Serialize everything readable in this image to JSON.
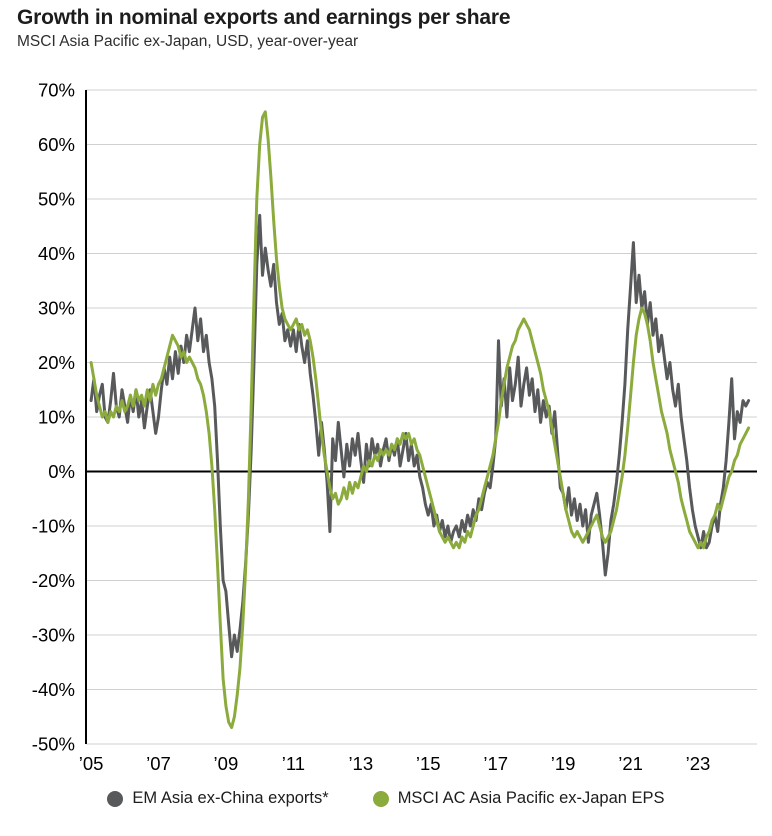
{
  "chart_data": {
    "type": "line",
    "title": "Growth in nominal exports and earnings per share",
    "subtitle": "MSCI Asia Pacific ex-Japan, USD, year-over-year",
    "frequency": "monthly",
    "x_start": 2005.0,
    "x_step": 0.0833333,
    "xlim": [
      2004.85,
      2024.75
    ],
    "ylim": [
      -50,
      70
    ],
    "grid": "horizontal",
    "grid_color": "#cfd0d2",
    "zero_line": true,
    "zero_line_color": "#000000",
    "axis_color": "#000000",
    "legend_position": "bottom",
    "y_ticks": [
      {
        "value": 70,
        "label": "70%"
      },
      {
        "value": 60,
        "label": "60%"
      },
      {
        "value": 50,
        "label": "50%"
      },
      {
        "value": 40,
        "label": "40%"
      },
      {
        "value": 30,
        "label": "30%"
      },
      {
        "value": 20,
        "label": "20%"
      },
      {
        "value": 10,
        "label": "10%"
      },
      {
        "value": 0,
        "label": "0%"
      },
      {
        "value": -10,
        "label": "-10%"
      },
      {
        "value": -20,
        "label": "-20%"
      },
      {
        "value": -30,
        "label": "-30%"
      },
      {
        "value": -40,
        "label": "-40%"
      },
      {
        "value": -50,
        "label": "-50%"
      }
    ],
    "x_ticks": [
      {
        "value": 2005,
        "label": "’05"
      },
      {
        "value": 2007,
        "label": "’07"
      },
      {
        "value": 2009,
        "label": "’09"
      },
      {
        "value": 2011,
        "label": "’11"
      },
      {
        "value": 2013,
        "label": "’13"
      },
      {
        "value": 2015,
        "label": "’15"
      },
      {
        "value": 2017,
        "label": "’17"
      },
      {
        "value": 2019,
        "label": "’19"
      },
      {
        "value": 2021,
        "label": "’21"
      },
      {
        "value": 2023,
        "label": "’23"
      }
    ],
    "series": [
      {
        "name": "EM Asia ex-China exports*",
        "color": "#58595b",
        "values": [
          13,
          17,
          11,
          14,
          16,
          10,
          9,
          13,
          18,
          12,
          10,
          15,
          12,
          9,
          14,
          11,
          15,
          10,
          13,
          8,
          12,
          15,
          11,
          7,
          10,
          15,
          19,
          16,
          21,
          17,
          22,
          18,
          23,
          20,
          25,
          22,
          26,
          30,
          24,
          28,
          22,
          25,
          20,
          17,
          12,
          2,
          -10,
          -20,
          -22,
          -28,
          -34,
          -30,
          -33,
          -29,
          -24,
          -17,
          -8,
          4,
          20,
          38,
          47,
          36,
          41,
          37,
          34,
          38,
          31,
          27,
          29,
          24,
          26,
          23,
          26,
          22,
          27,
          23,
          20,
          24,
          18,
          14,
          9,
          3,
          9,
          4,
          -2,
          -11,
          6,
          2,
          9,
          4,
          -1,
          5,
          1,
          6,
          3,
          7,
          2,
          -2,
          5,
          1,
          6,
          3,
          5,
          1,
          4,
          6,
          2,
          5,
          3,
          6,
          1,
          4,
          7,
          2,
          5,
          1,
          3,
          -1,
          -3,
          -6,
          -8,
          -6,
          -10,
          -8,
          -11,
          -9,
          -12,
          -10,
          -13,
          -11,
          -10,
          -12,
          -9,
          -11,
          -8,
          -10,
          -7,
          -9,
          -5,
          -7,
          -4,
          -2,
          -3,
          1,
          6,
          24,
          12,
          17,
          10,
          19,
          13,
          16,
          21,
          12,
          16,
          19,
          14,
          17,
          11,
          15,
          9,
          13,
          10,
          12,
          7,
          11,
          4,
          -3,
          -4,
          -7,
          -3,
          -8,
          -5,
          -9,
          -6,
          -10,
          -7,
          -13,
          -8,
          -6,
          -4,
          -8,
          -13,
          -19,
          -15,
          -9,
          -6,
          -2,
          3,
          9,
          16,
          26,
          34,
          42,
          31,
          36,
          30,
          33,
          27,
          31,
          25,
          28,
          22,
          25,
          21,
          17,
          20,
          15,
          12,
          16,
          10,
          6,
          2,
          -3,
          -7,
          -10,
          -12,
          -14,
          -11,
          -14,
          -13,
          -10,
          -8,
          -11,
          -6,
          -3,
          2,
          9,
          17,
          6,
          11,
          9,
          13,
          12,
          13
        ]
      },
      {
        "name": "MSCI AC Asia Pacific ex-Japan EPS",
        "color": "#8cab3d",
        "values": [
          20,
          17,
          14,
          12,
          10,
          11,
          9,
          11,
          10,
          12,
          11,
          13,
          11,
          12,
          14,
          12,
          15,
          13,
          14,
          12,
          15,
          13,
          16,
          14,
          16,
          17,
          19,
          21,
          23,
          25,
          24,
          23,
          21,
          22,
          20,
          21,
          20,
          19,
          17,
          16,
          14,
          11,
          7,
          1,
          -7,
          -17,
          -28,
          -38,
          -43,
          -46,
          -47,
          -45,
          -41,
          -36,
          -28,
          -18,
          -5,
          12,
          32,
          50,
          60,
          65,
          66,
          61,
          54,
          46,
          39,
          34,
          30,
          28,
          27,
          26,
          27,
          28,
          26,
          27,
          25,
          26,
          24,
          21,
          17,
          12,
          7,
          3,
          0,
          -3,
          -5,
          -4,
          -6,
          -5,
          -3,
          -5,
          -2,
          -4,
          -2,
          -3,
          -1,
          1,
          0,
          2,
          1,
          3,
          2,
          4,
          3,
          4,
          3,
          5,
          4,
          6,
          5,
          7,
          6,
          7,
          5,
          6,
          4,
          3,
          1,
          -1,
          -3,
          -5,
          -7,
          -9,
          -11,
          -12,
          -13,
          -12,
          -13,
          -14,
          -13,
          -14,
          -12,
          -13,
          -11,
          -12,
          -10,
          -8,
          -7,
          -5,
          -3,
          -1,
          1,
          3,
          6,
          9,
          13,
          16,
          19,
          21,
          23,
          24,
          26,
          27,
          28,
          27,
          26,
          24,
          22,
          20,
          18,
          15,
          13,
          11,
          8,
          5,
          2,
          -1,
          -4,
          -7,
          -9,
          -11,
          -12,
          -11,
          -12,
          -13,
          -12,
          -11,
          -10,
          -9,
          -8,
          -10,
          -12,
          -13,
          -12,
          -11,
          -9,
          -7,
          -4,
          -1,
          3,
          8,
          14,
          20,
          25,
          28,
          30,
          29,
          27,
          24,
          20,
          17,
          14,
          11,
          9,
          7,
          4,
          2,
          0,
          -2,
          -5,
          -7,
          -9,
          -11,
          -12,
          -13,
          -14,
          -13,
          -14,
          -12,
          -11,
          -9,
          -8,
          -6,
          -7,
          -5,
          -3,
          -1,
          0,
          2,
          3,
          5,
          6,
          7,
          8
        ]
      }
    ]
  }
}
